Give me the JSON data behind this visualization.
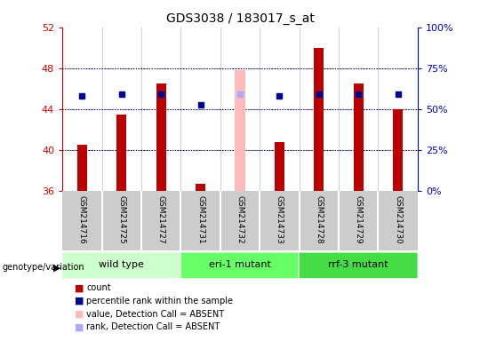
{
  "title": "GDS3038 / 183017_s_at",
  "samples": [
    "GSM214716",
    "GSM214725",
    "GSM214727",
    "GSM214731",
    "GSM214732",
    "GSM214733",
    "GSM214728",
    "GSM214729",
    "GSM214730"
  ],
  "count_values": [
    40.5,
    43.5,
    46.5,
    36.7,
    null,
    40.8,
    50.0,
    46.5,
    44.0
  ],
  "absent_value": 47.8,
  "absent_index": 4,
  "percentile_values": [
    45.3,
    45.5,
    45.5,
    44.4,
    45.5,
    45.3,
    45.5,
    45.5,
    45.5
  ],
  "absent_rank": 45.5,
  "ylim_left": [
    36,
    52
  ],
  "ylim_right": [
    0,
    100
  ],
  "yticks_left": [
    36,
    40,
    44,
    48,
    52
  ],
  "yticks_right": [
    0,
    25,
    50,
    75,
    100
  ],
  "groups": [
    {
      "label": "wild type",
      "indices": [
        0,
        1,
        2
      ],
      "color": "#ccffcc"
    },
    {
      "label": "eri-1 mutant",
      "indices": [
        3,
        4,
        5
      ],
      "color": "#66ff66"
    },
    {
      "label": "rrf-3 mutant",
      "indices": [
        6,
        7,
        8
      ],
      "color": "#44dd44"
    }
  ],
  "bar_color": "#bb0000",
  "absent_bar_color": "#ffbbbb",
  "percentile_color": "#000099",
  "absent_rank_color": "#aaaaff",
  "bg_color": "#ffffff",
  "sample_bg": "#cccccc",
  "left_axis_color": "#cc0000",
  "right_axis_color": "#0000cc",
  "bar_width": 0.25,
  "legend_items": [
    {
      "color": "#bb0000",
      "label": "count"
    },
    {
      "color": "#000099",
      "label": "percentile rank within the sample"
    },
    {
      "color": "#ffbbbb",
      "label": "value, Detection Call = ABSENT"
    },
    {
      "color": "#aaaaff",
      "label": "rank, Detection Call = ABSENT"
    }
  ]
}
